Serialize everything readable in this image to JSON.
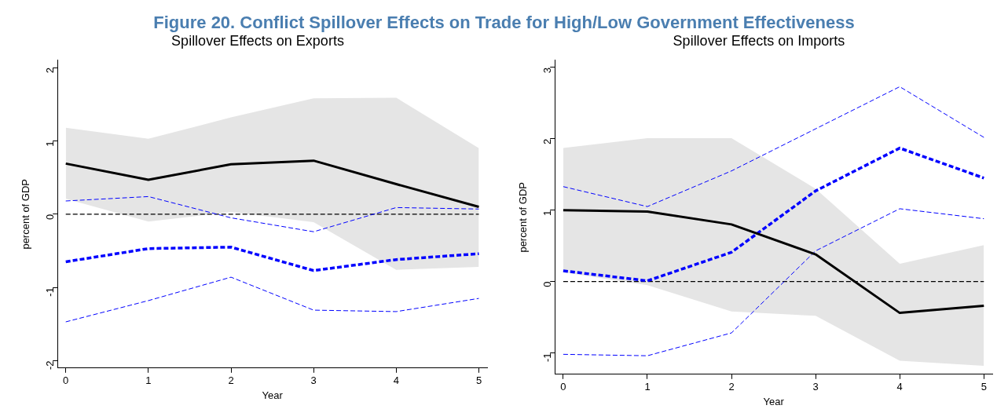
{
  "chart_data": [
    {
      "type": "line",
      "title": "Figure 20. Conflict Spillover Effects on Trade for High/Low Government Effectiveness",
      "subtitle": "Spillover Effects on Exports",
      "xlabel": "Year",
      "ylabel": "percent of GDP",
      "x": [
        0,
        1,
        2,
        3,
        4,
        5
      ],
      "xlim": [
        -0.1,
        5.1
      ],
      "xticks": [
        0,
        1,
        2,
        3,
        4,
        5
      ],
      "ylim": [
        -2.1,
        2.1
      ],
      "yticks": [
        -2,
        -1,
        0,
        1,
        2
      ],
      "grid": false,
      "legend": false,
      "marker": "none",
      "ref_lines": [
        {
          "axis": "y",
          "value": 0,
          "color": "#000000",
          "line_style": "dashed"
        }
      ],
      "series": [
        {
          "color": "#000000",
          "line_style": "solid",
          "values": [
            0.69,
            0.47,
            0.68,
            0.73,
            0.41,
            0.1
          ],
          "lower": [
            0.21,
            -0.1,
            0.03,
            -0.11,
            -0.76,
            -0.72
          ],
          "upper": [
            1.18,
            1.03,
            1.32,
            1.58,
            1.59,
            0.9
          ]
        },
        {
          "color": "#0000ff",
          "line_style": "dashed",
          "values": [
            -0.65,
            -0.47,
            -0.45,
            -0.77,
            -0.62,
            -0.54
          ]
        },
        {
          "color": "#0000ff",
          "line_style": "dashed",
          "values": [
            0.18,
            0.24,
            -0.05,
            -0.24,
            0.09,
            0.07
          ]
        },
        {
          "color": "#0000ff",
          "line_style": "dashed",
          "values": [
            -1.47,
            -1.18,
            -0.86,
            -1.31,
            -1.33,
            -1.15
          ]
        }
      ]
    },
    {
      "type": "line",
      "subtitle": "Spillover Effects on Imports",
      "xlabel": "Year",
      "ylabel": "percent of GDP",
      "x": [
        0,
        1,
        2,
        3,
        4,
        5
      ],
      "xlim": [
        -0.1,
        5.1
      ],
      "xticks": [
        0,
        1,
        2,
        3,
        4,
        5
      ],
      "ylim": [
        -1.3,
        3.1
      ],
      "yticks": [
        -1,
        0,
        1,
        2,
        3
      ],
      "grid": false,
      "legend": false,
      "marker": "none",
      "ref_lines": [
        {
          "axis": "y",
          "value": 0,
          "color": "#000000",
          "line_style": "dashed"
        }
      ],
      "series": [
        {
          "color": "#000000",
          "line_style": "solid",
          "values": [
            1.0,
            0.98,
            0.8,
            0.38,
            -0.44,
            -0.34
          ],
          "lower": [
            0.13,
            -0.05,
            -0.42,
            -0.48,
            -1.11,
            -1.18
          ],
          "upper": [
            1.87,
            2.01,
            2.01,
            1.3,
            0.25,
            0.51
          ]
        },
        {
          "color": "#0000ff",
          "line_style": "dashed",
          "values": [
            0.15,
            0.01,
            0.41,
            1.27,
            1.87,
            1.45
          ]
        },
        {
          "color": "#0000ff",
          "line_style": "dashed",
          "values": [
            1.33,
            1.05,
            1.55,
            2.14,
            2.73,
            2.02
          ]
        },
        {
          "color": "#0000ff",
          "line_style": "dashed",
          "values": [
            -1.02,
            -1.04,
            -0.72,
            0.43,
            1.02,
            0.88
          ]
        }
      ]
    }
  ]
}
